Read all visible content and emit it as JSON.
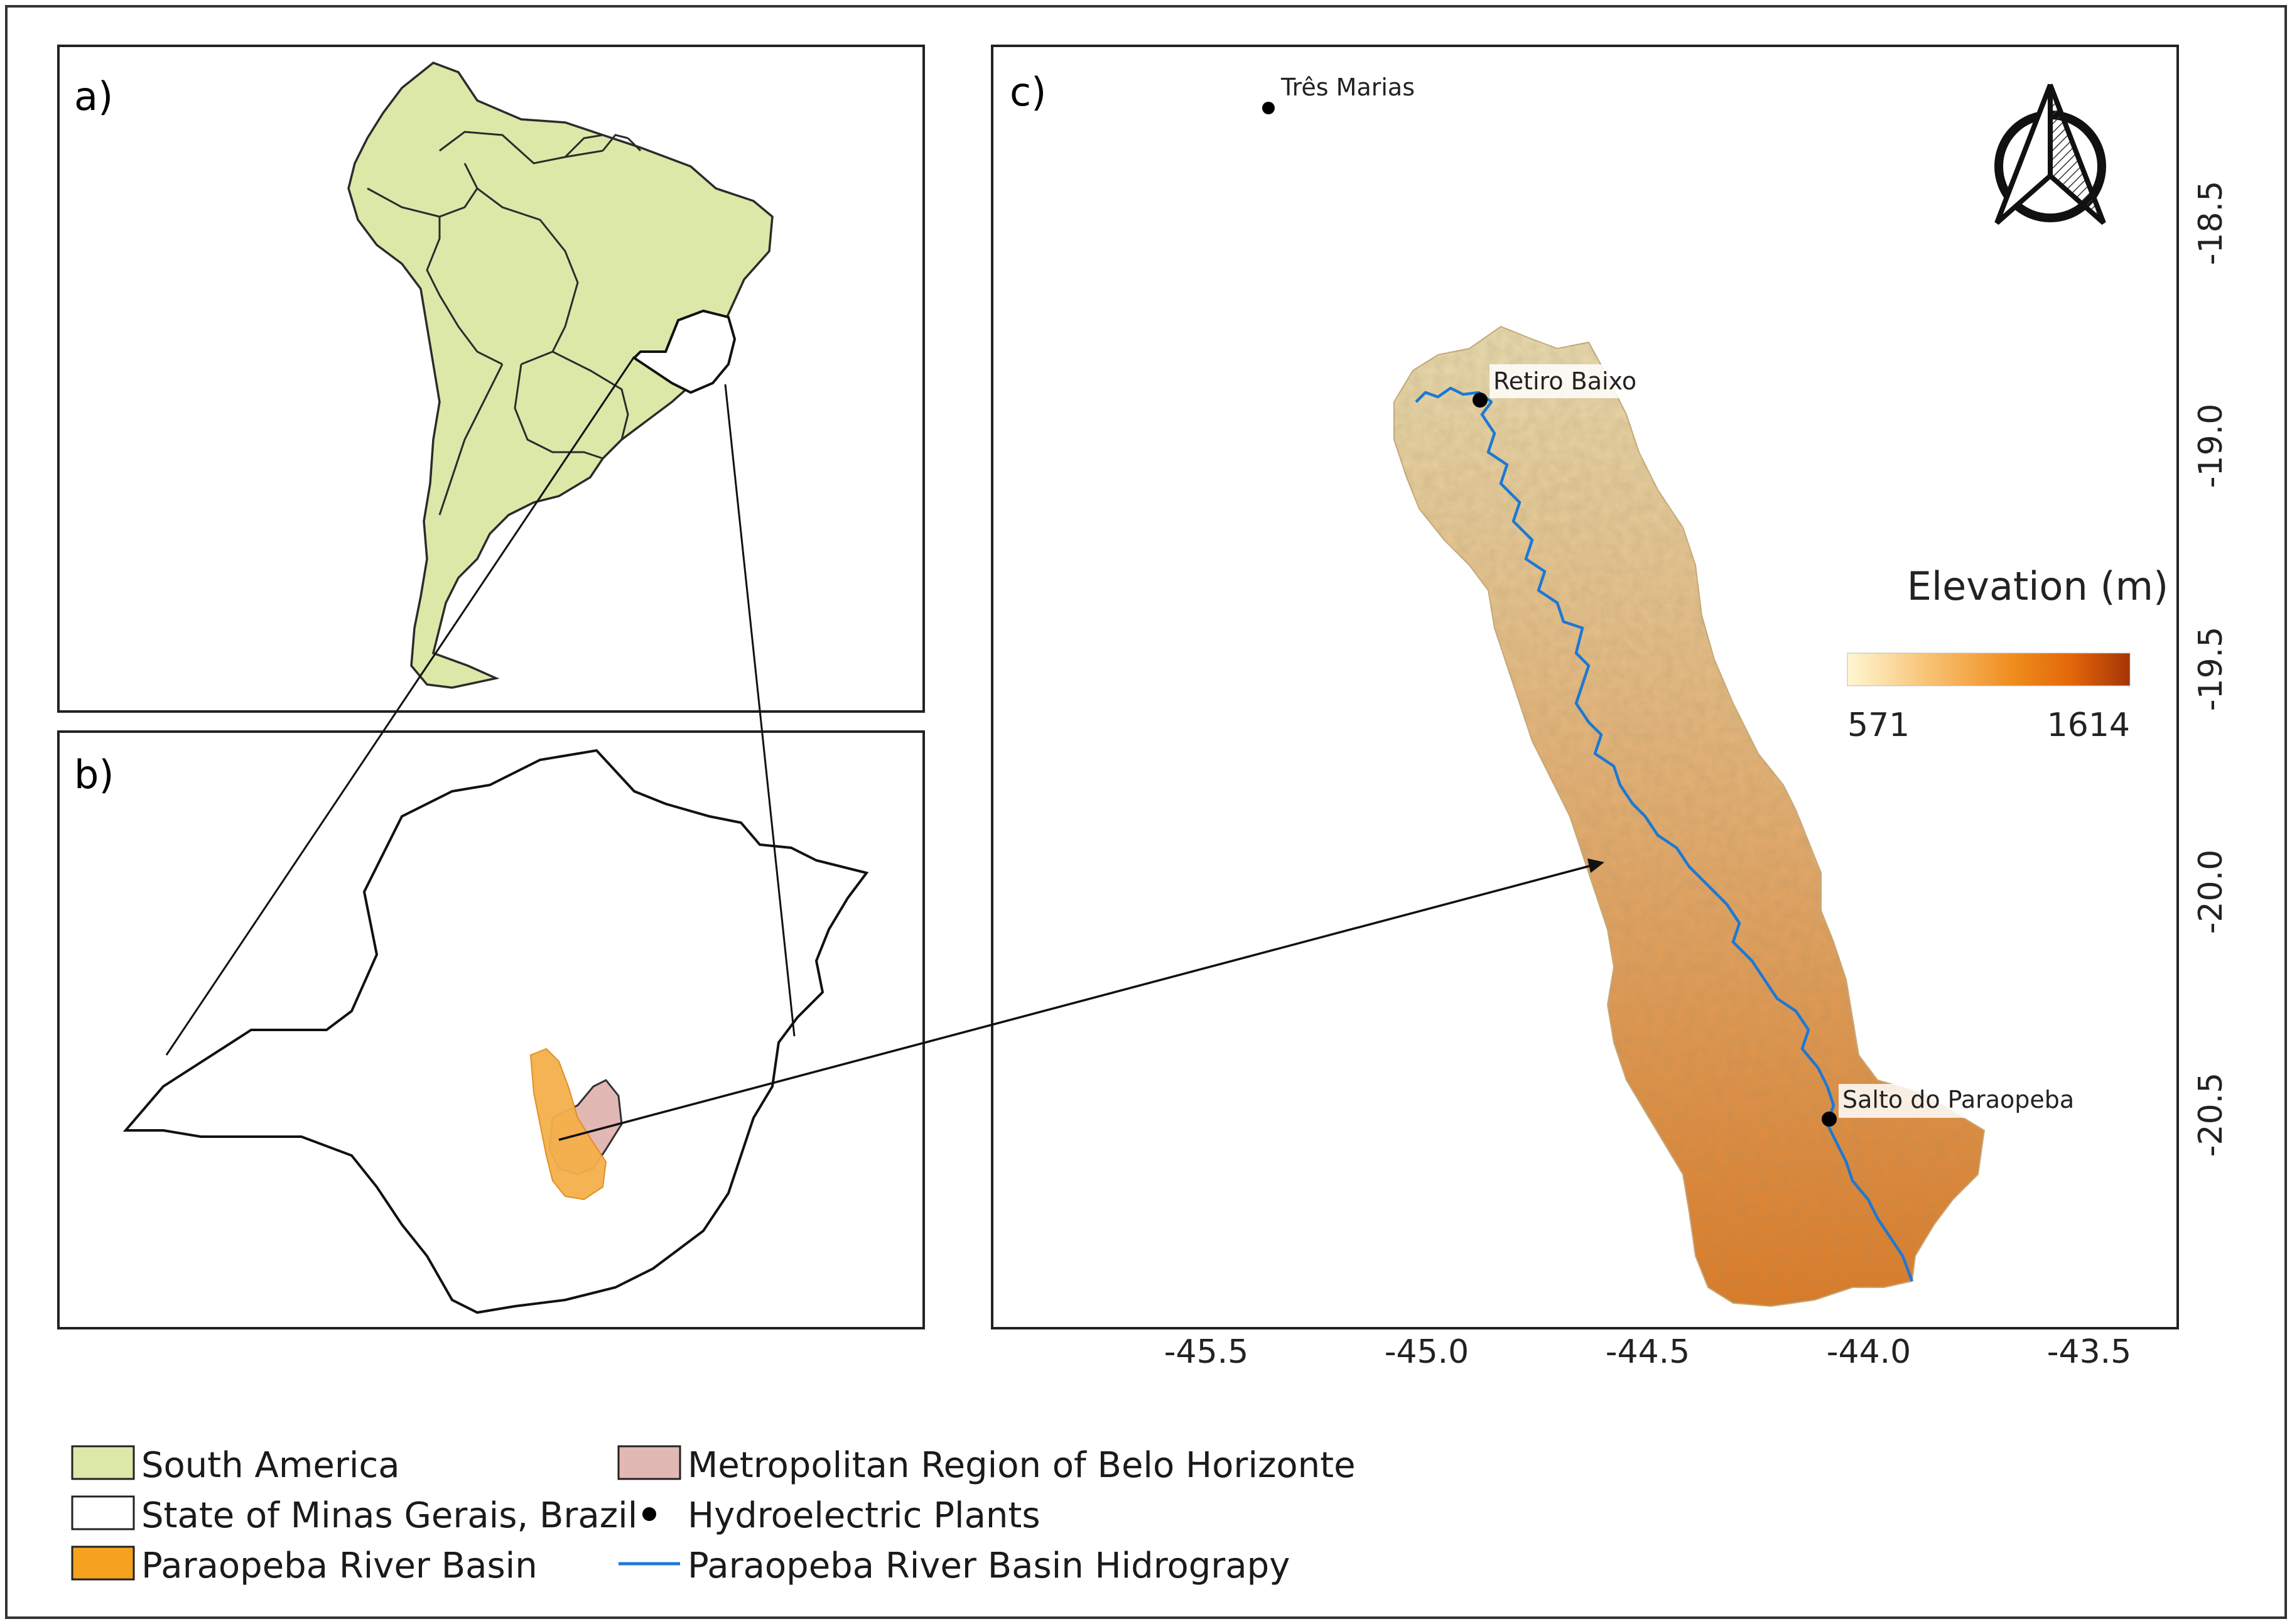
{
  "panels": {
    "a": {
      "label": "a)"
    },
    "b": {
      "label": "b)"
    },
    "c": {
      "label": "c)",
      "x_ticks": [
        "-45.5",
        "-45.0",
        "-44.5",
        "-44.0",
        "-43.5"
      ],
      "y_ticks": [
        "-18.5",
        "-19.0",
        "-19.5",
        "-20.0",
        "-20.5"
      ],
      "places": [
        {
          "name": "Três Marias"
        },
        {
          "name": "Retiro Baixo"
        },
        {
          "name": "Salto do Paraopeba"
        }
      ],
      "colorbar": {
        "title": "Elevation (m)",
        "min_label": "571",
        "max_label": "1614",
        "colors": [
          "#fff6d2",
          "#f8c070",
          "#ef8a1c",
          "#e2650a",
          "#a33406"
        ]
      },
      "north_arrow_icon": "north-arrow-icon"
    }
  },
  "legend": {
    "items": [
      {
        "label": "South America",
        "symbol": "fill",
        "color": "#dbe8a8"
      },
      {
        "label": "State of Minas Gerais, Brazil",
        "symbol": "fill",
        "color": "#ffffff"
      },
      {
        "label": "Paraopeba River Basin",
        "symbol": "fill",
        "color": "#f5a21e"
      },
      {
        "label": "Metropolitan Region of Belo Horizonte",
        "symbol": "fill",
        "color": "#e2b8b4"
      },
      {
        "label": "Hydroelectric Plants",
        "symbol": "dot",
        "color": "#000000"
      },
      {
        "label": "Paraopeba River Basin Hidrograpy",
        "symbol": "line",
        "color": "#1e78d2"
      }
    ]
  },
  "colors": {
    "south_america": "#dbe8a8",
    "river": "#1e78d2",
    "basin_low": "#e8dcae",
    "basin_high": "#df7a1e",
    "metro": "#e2b8b4"
  }
}
